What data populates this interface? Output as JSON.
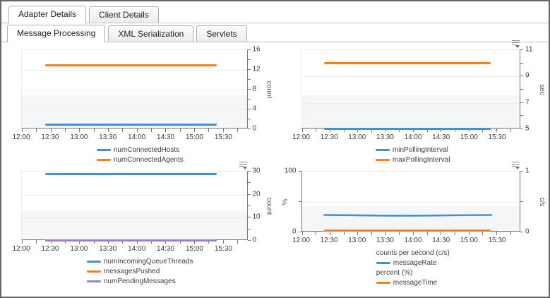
{
  "tabs": {
    "primary": [
      {
        "label": "Adapter Details",
        "active": true
      },
      {
        "label": "Client Details",
        "active": false
      }
    ],
    "secondary": [
      {
        "label": "Message Processing",
        "active": true
      },
      {
        "label": "XML Serialization",
        "active": false
      },
      {
        "label": "Servlets",
        "active": false
      }
    ]
  },
  "colors": {
    "blue": "#3d92da",
    "orange": "#ef8122",
    "purple": "#9d7fce",
    "axis": "#767676",
    "grid": "#ebebeb",
    "band": "#f5f6f8"
  },
  "chart_data": [
    {
      "name": "connected-hosts-agents",
      "type": "line",
      "menu_icon": false,
      "x": {
        "labels": [
          "12:00",
          "12:30",
          "13:00",
          "13:30",
          "14:00",
          "14:30",
          "15:00",
          "15:30"
        ],
        "span": 235,
        "minor_step": 15,
        "label_step": 30,
        "data_range": [
          24,
          204
        ]
      },
      "y_right": {
        "title": "count",
        "min": 0,
        "max": 16,
        "tick_step": 2,
        "labeled": [
          0,
          4,
          8,
          12,
          16
        ]
      },
      "series": [
        {
          "name": "numConnectedHosts",
          "color": "blue",
          "axis": "right",
          "value": 1
        },
        {
          "name": "numConnectedAgents",
          "color": "orange",
          "axis": "right",
          "value": 13
        }
      ],
      "legend": [
        {
          "marker": "blue",
          "label": "numConnectedHosts"
        },
        {
          "marker": "orange",
          "label": "numConnectedAgents"
        }
      ]
    },
    {
      "name": "polling-interval",
      "type": "line",
      "menu_icon": true,
      "x": {
        "labels": [
          "12:00",
          "12:30",
          "13:00",
          "13:30",
          "14:00",
          "14:30",
          "15:00",
          "15:30"
        ],
        "span": 235,
        "minor_step": 15,
        "label_step": 30,
        "data_range": [
          24,
          204
        ]
      },
      "y_right": {
        "title": "sec",
        "min": 5,
        "max": 11,
        "tick_step": 1,
        "labeled": [
          5,
          7,
          9,
          11
        ]
      },
      "series": [
        {
          "name": "minPollingInterval",
          "color": "blue",
          "axis": "right",
          "value": 5
        },
        {
          "name": "maxPollingInterval",
          "color": "orange",
          "axis": "right",
          "value": 10
        }
      ],
      "legend": [
        {
          "marker": "blue",
          "label": "minPollingInterval"
        },
        {
          "marker": "orange",
          "label": "maxPollingInterval"
        }
      ]
    },
    {
      "name": "queue-messages",
      "type": "line",
      "menu_icon": true,
      "x": {
        "labels": [
          "12:00",
          "12:30",
          "13:00",
          "13:30",
          "14:00",
          "14:30",
          "15:00",
          "15:30"
        ],
        "span": 235,
        "minor_step": 15,
        "label_step": 30,
        "data_range": [
          24,
          204
        ]
      },
      "y_right": {
        "title": "count",
        "min": 0,
        "max": 30,
        "tick_step": 5,
        "labeled": [
          0,
          10,
          20,
          30
        ]
      },
      "series": [
        {
          "name": "numIncomingQueueThreads",
          "color": "blue",
          "axis": "right",
          "value": 30
        },
        {
          "name": "messagesPushed",
          "color": "orange",
          "axis": "right",
          "value": 0
        },
        {
          "name": "numPendingMessages",
          "color": "purple",
          "axis": "right",
          "value": 0
        }
      ],
      "legend": [
        {
          "marker": "blue",
          "label": "numIncomingQueueThreads"
        },
        {
          "marker": "orange",
          "label": "messagesPushed"
        },
        {
          "marker": "purple",
          "label": "numPendingMessages"
        }
      ]
    },
    {
      "name": "message-rate-time",
      "type": "line",
      "menu_icon": true,
      "x": {
        "labels": [
          "12:00",
          "12:30",
          "13:00",
          "13:30",
          "14:00",
          "14:30",
          "15:00",
          "15:30"
        ],
        "span": 235,
        "minor_step": 15,
        "label_step": 30,
        "data_range": [
          24,
          204
        ]
      },
      "y_left": {
        "title": "%",
        "min": 0,
        "max": 100,
        "tick_step": 50,
        "labeled": [
          0,
          100
        ]
      },
      "y_right": {
        "title": "c/s",
        "min": 0,
        "max": 1,
        "tick_step": 0.5,
        "labeled": [
          0,
          1
        ],
        "grid_at": [
          0.5
        ]
      },
      "series": [
        {
          "name": "messageRate",
          "color": "blue",
          "axis": "right",
          "points": [
            [
              24,
              0.268
            ],
            [
              54,
              0.264
            ],
            [
              84,
              0.258
            ],
            [
              114,
              0.257
            ],
            [
              144,
              0.26
            ],
            [
              174,
              0.265
            ],
            [
              204,
              0.268
            ]
          ]
        },
        {
          "name": "messageTime",
          "color": "orange",
          "axis": "left",
          "value": 3
        }
      ],
      "legend": [
        {
          "header": "counts per second (c/s)"
        },
        {
          "marker": "blue",
          "label": "messageRate"
        },
        {
          "header": "percent (%)"
        },
        {
          "marker": "orange",
          "label": "messageTime"
        }
      ]
    }
  ]
}
